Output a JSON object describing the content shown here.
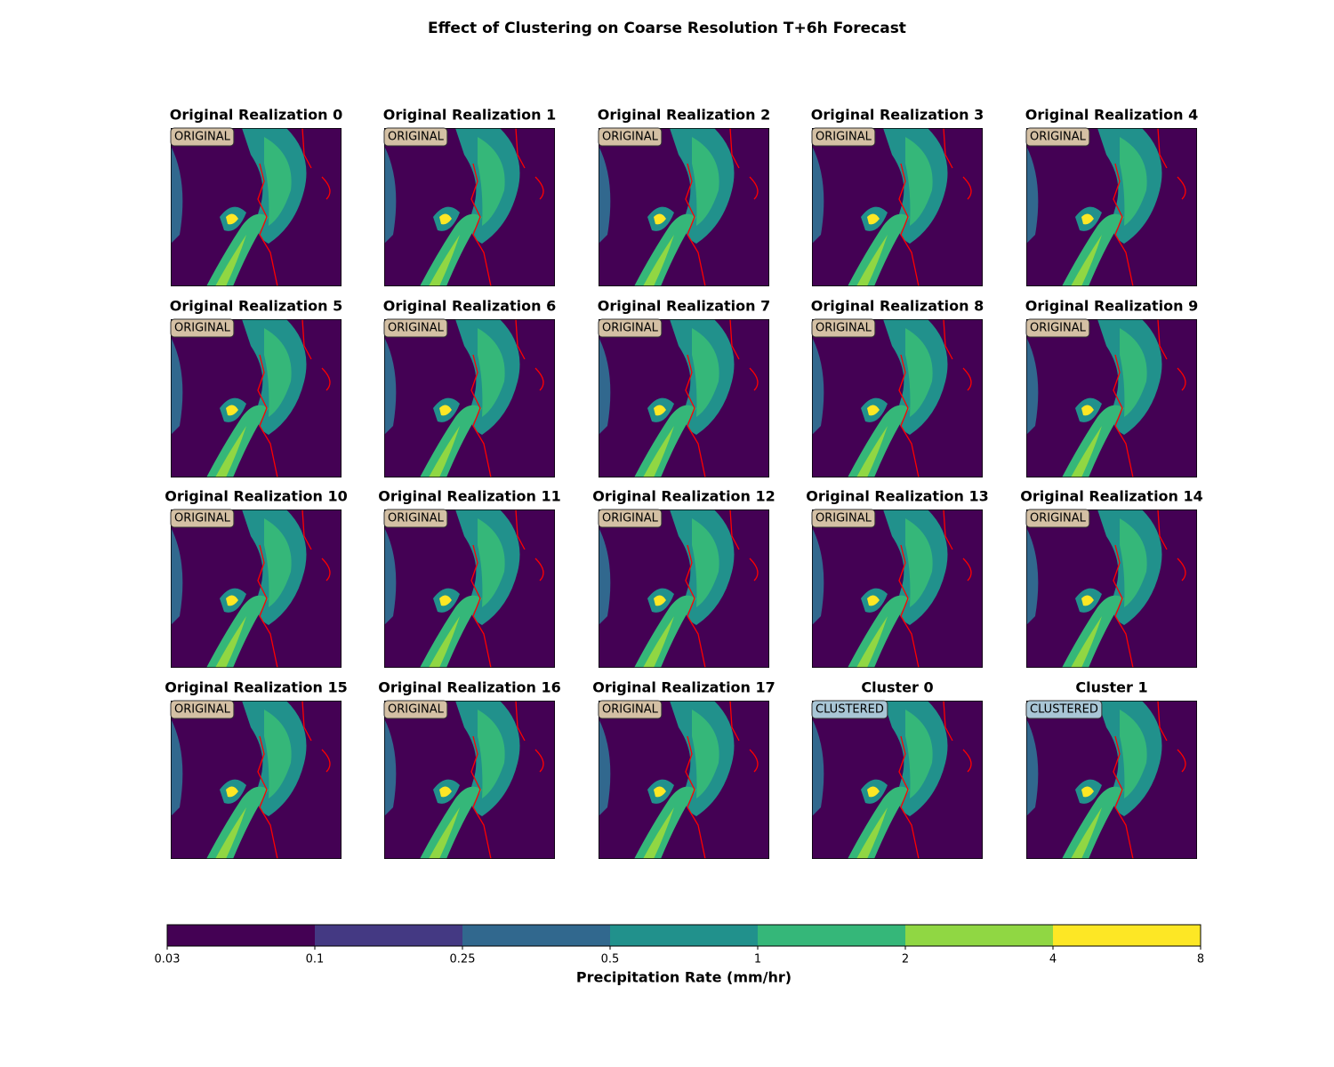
{
  "chart_data": {
    "type": "map-grid",
    "title": "Effect of Clustering on Coarse Resolution T+6h Forecast",
    "panels": [
      {
        "title": "Original Realization 0",
        "badge": "ORIGINAL",
        "badge_color": "#d4c0a4"
      },
      {
        "title": "Original Realization 1",
        "badge": "ORIGINAL",
        "badge_color": "#d4c0a4"
      },
      {
        "title": "Original Realization 2",
        "badge": "ORIGINAL",
        "badge_color": "#d4c0a4"
      },
      {
        "title": "Original Realization 3",
        "badge": "ORIGINAL",
        "badge_color": "#d4c0a4"
      },
      {
        "title": "Original Realization 4",
        "badge": "ORIGINAL",
        "badge_color": "#d4c0a4"
      },
      {
        "title": "Original Realization 5",
        "badge": "ORIGINAL",
        "badge_color": "#d4c0a4"
      },
      {
        "title": "Original Realization 6",
        "badge": "ORIGINAL",
        "badge_color": "#d4c0a4"
      },
      {
        "title": "Original Realization 7",
        "badge": "ORIGINAL",
        "badge_color": "#d4c0a4"
      },
      {
        "title": "Original Realization 8",
        "badge": "ORIGINAL",
        "badge_color": "#d4c0a4"
      },
      {
        "title": "Original Realization 9",
        "badge": "ORIGINAL",
        "badge_color": "#d4c0a4"
      },
      {
        "title": "Original Realization 10",
        "badge": "ORIGINAL",
        "badge_color": "#d4c0a4"
      },
      {
        "title": "Original Realization 11",
        "badge": "ORIGINAL",
        "badge_color": "#d4c0a4"
      },
      {
        "title": "Original Realization 12",
        "badge": "ORIGINAL",
        "badge_color": "#d4c0a4"
      },
      {
        "title": "Original Realization 13",
        "badge": "ORIGINAL",
        "badge_color": "#d4c0a4"
      },
      {
        "title": "Original Realization 14",
        "badge": "ORIGINAL",
        "badge_color": "#d4c0a4"
      },
      {
        "title": "Original Realization 15",
        "badge": "ORIGINAL",
        "badge_color": "#d4c0a4"
      },
      {
        "title": "Original Realization 16",
        "badge": "ORIGINAL",
        "badge_color": "#d4c0a4"
      },
      {
        "title": "Original Realization 17",
        "badge": "ORIGINAL",
        "badge_color": "#d4c0a4"
      },
      {
        "title": "Cluster 0",
        "badge": "CLUSTERED",
        "badge_color": "#a9c6d6"
      },
      {
        "title": "Cluster 1",
        "badge": "CLUSTERED",
        "badge_color": "#a9c6d6"
      }
    ],
    "colorbar": {
      "label": "Precipitation Rate (mm/hr)",
      "boundaries": [
        0.03,
        0.1,
        0.25,
        0.5,
        1,
        2,
        4,
        8
      ],
      "colors": [
        "#440154",
        "#443983",
        "#31688e",
        "#21918c",
        "#35b779",
        "#90d743",
        "#fde725"
      ]
    }
  }
}
